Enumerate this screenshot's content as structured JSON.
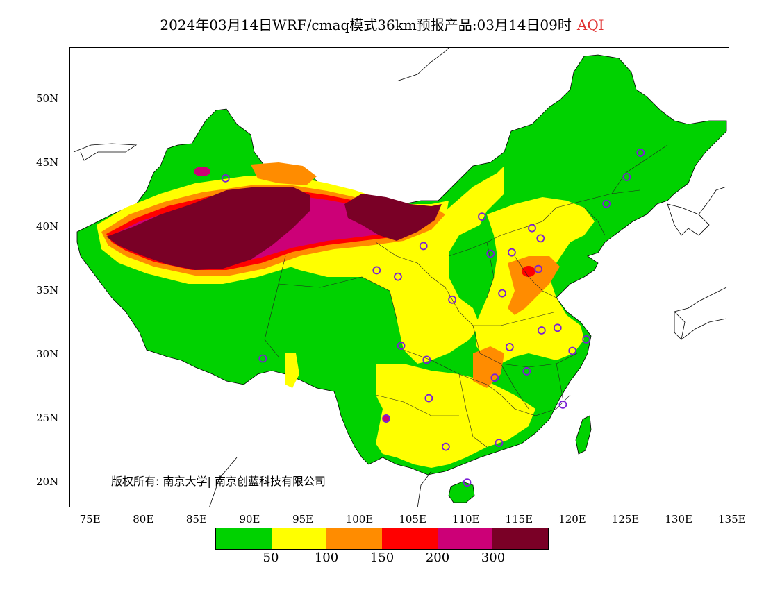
{
  "title": {
    "main": "2024年03月14日WRF/cmaq模式36km预报产品:03月14日09时",
    "product": "AQI"
  },
  "map": {
    "lon_range": [
      73,
      135
    ],
    "lat_range": [
      18,
      54
    ],
    "x_ticks": [
      "75E",
      "80E",
      "85E",
      "90E",
      "95E",
      "100E",
      "105E",
      "110E",
      "115E",
      "120E",
      "125E",
      "130E",
      "135E"
    ],
    "y_ticks": [
      "50N",
      "45N",
      "40N",
      "35N",
      "30N",
      "25N",
      "20N"
    ],
    "copyright": "版权所有: 南京大学| 南京创蓝科技有限公司"
  },
  "legend": {
    "colors": [
      "#00d200",
      "#ffff00",
      "#ff8c00",
      "#ff0000",
      "#cc0077",
      "#7a0026"
    ],
    "thresholds": [
      "50",
      "100",
      "150",
      "200",
      "300"
    ]
  },
  "stations": [
    {
      "lon": 87.6,
      "lat": 43.8
    },
    {
      "lon": 126.6,
      "lat": 45.8
    },
    {
      "lon": 125.3,
      "lat": 43.9
    },
    {
      "lon": 123.4,
      "lat": 41.8
    },
    {
      "lon": 111.7,
      "lat": 40.8
    },
    {
      "lon": 116.4,
      "lat": 39.9
    },
    {
      "lon": 117.2,
      "lat": 39.1
    },
    {
      "lon": 112.5,
      "lat": 37.9
    },
    {
      "lon": 114.5,
      "lat": 38.0
    },
    {
      "lon": 106.2,
      "lat": 38.5
    },
    {
      "lon": 101.8,
      "lat": 36.6
    },
    {
      "lon": 103.8,
      "lat": 36.1
    },
    {
      "lon": 117.0,
      "lat": 36.7
    },
    {
      "lon": 113.6,
      "lat": 34.8
    },
    {
      "lon": 108.9,
      "lat": 34.3
    },
    {
      "lon": 117.3,
      "lat": 31.9
    },
    {
      "lon": 118.8,
      "lat": 32.1
    },
    {
      "lon": 121.5,
      "lat": 31.2
    },
    {
      "lon": 120.2,
      "lat": 30.3
    },
    {
      "lon": 114.3,
      "lat": 30.6
    },
    {
      "lon": 104.1,
      "lat": 30.7
    },
    {
      "lon": 106.5,
      "lat": 29.6
    },
    {
      "lon": 112.9,
      "lat": 28.2
    },
    {
      "lon": 115.9,
      "lat": 28.7
    },
    {
      "lon": 91.1,
      "lat": 29.7
    },
    {
      "lon": 106.7,
      "lat": 26.6
    },
    {
      "lon": 119.3,
      "lat": 26.1
    },
    {
      "lon": 102.7,
      "lat": 25.0
    },
    {
      "lon": 113.3,
      "lat": 23.1
    },
    {
      "lon": 108.3,
      "lat": 22.8
    },
    {
      "lon": 110.3,
      "lat": 20.0
    }
  ]
}
